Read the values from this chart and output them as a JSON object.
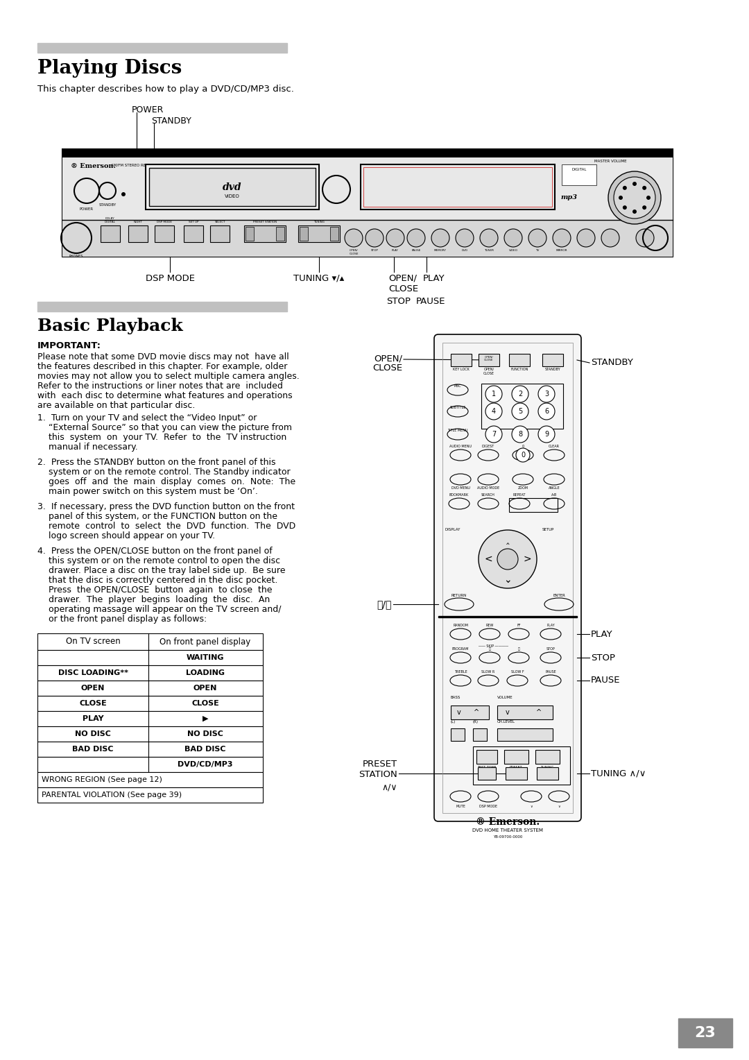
{
  "title": "Playing Discs",
  "subtitle": "This chapter describes how to play a DVD/CD/MP3 disc.",
  "section2_title": "Basic Playback",
  "important_label": "IMPORTANT:",
  "important_text1": "Please note that some DVD movie discs may not  have all",
  "important_text2": "the features described in this chapter. For example, older",
  "important_text3": "movies may not allow you to select multiple camera angles.",
  "important_text4": "Refer to the instructions or liner notes that are  included",
  "important_text5": "with  each disc to determine what features and operations",
  "important_text6": "are available on that particular disc.",
  "step1_lines": [
    "1.  Turn on your TV and select the “Video Input” or",
    "    “External Source” so that you can view the picture from",
    "    this  system  on  your TV.  Refer  to  the  TV instruction",
    "    manual if necessary."
  ],
  "step2_lines": [
    "2.  Press the STANDBY button on the front panel of this",
    "    system or on the remote control. The Standby indicator",
    "    goes  off  and  the  main  display  comes  on.  Note:  The",
    "    main power switch on this system must be ‘On’."
  ],
  "step3_lines": [
    "3.  If necessary, press the DVD function button on the front",
    "    panel of this system, or the FUNCTION button on the",
    "    remote  control  to  select  the  DVD  function.  The  DVD",
    "    logo screen should appear on your TV."
  ],
  "step4_lines": [
    "4.  Press the OPEN/CLOSE button on the front panel of",
    "    this system or on the remote control to open the disc",
    "    drawer. Place a disc on the tray label side up.  Be sure",
    "    that the disc is correctly centered in the disc pocket.",
    "    Press  the OPEN/CLOSE  button  again  to close  the",
    "    drawer.  The  player  begins  loading  the  disc.  An",
    "    operating massage will appear on the TV screen and/",
    "    or the front panel display as follows:"
  ],
  "table_headers": [
    "On TV screen",
    "On front panel display"
  ],
  "table_rows": [
    [
      "",
      "WAITING"
    ],
    [
      "DISC LOADING**",
      "LOADING"
    ],
    [
      "OPEN",
      "OPEN"
    ],
    [
      "CLOSE",
      "CLOSE"
    ],
    [
      "PLAY",
      "▶"
    ],
    [
      "NO DISC",
      "NO DISC"
    ],
    [
      "BAD DISC",
      "BAD DISC"
    ],
    [
      "",
      "DVD/CD/MP3"
    ]
  ],
  "table_full_rows": [
    "WRONG REGION (See page 12)",
    "PARENTAL VIOLATION (See page 39)"
  ],
  "bg_color": "#ffffff",
  "text_color": "#000000",
  "gray_bar_color": "#c0c0c0",
  "page_number": "23"
}
